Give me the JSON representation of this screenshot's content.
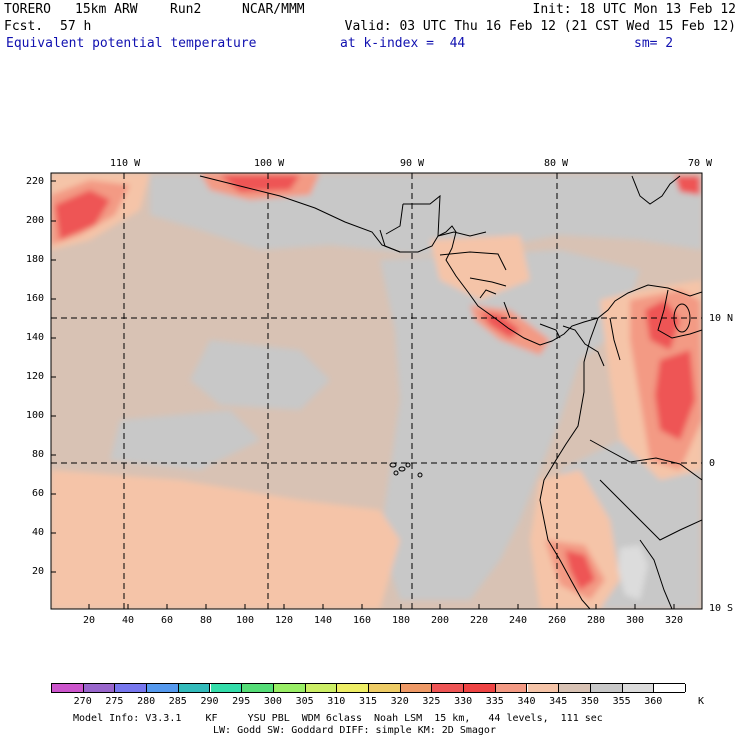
{
  "header": {
    "model": "TORERO",
    "resolution": "15km ARW",
    "run": "Run2",
    "org": "NCAR/MMM",
    "init": "Init: 18 UTC Mon 13 Feb 12",
    "fcst_label": "Fcst.",
    "fcst_hours": "57 h",
    "valid": "Valid: 03 UTC Thu 16 Feb 12 (21 CST Wed 15 Feb 12)",
    "field": "Equivalent potential temperature",
    "level": "at k-index =  44",
    "smoothing": "sm= 2"
  },
  "map": {
    "top_lon_labels": [
      "110 W",
      "100 W",
      "90 W",
      "80 W",
      "70 W"
    ],
    "right_lat_labels": [
      "10 N",
      "0",
      "10 S"
    ],
    "left_ticks": [
      "220",
      "200",
      "180",
      "160",
      "140",
      "120",
      "100",
      "80",
      "60",
      "40",
      "20"
    ],
    "bottom_ticks": [
      "20",
      "40",
      "60",
      "80",
      "100",
      "120",
      "140",
      "160",
      "180",
      "200",
      "220",
      "240",
      "260",
      "280",
      "300",
      "320"
    ]
  },
  "colorbar": {
    "unit": "K",
    "labels": [
      "270",
      "275",
      "280",
      "285",
      "290",
      "295",
      "300",
      "305",
      "310",
      "315",
      "320",
      "325",
      "330",
      "335",
      "340",
      "345",
      "350",
      "355",
      "360"
    ],
    "colors": [
      "#cc55cc",
      "#9966cc",
      "#7777ee",
      "#5599ee",
      "#33bbbb",
      "#33ddaa",
      "#55dd77",
      "#99ee66",
      "#ccee66",
      "#eeee66",
      "#eecc66",
      "#ee9966",
      "#ee5555",
      "#ee4444",
      "#f39a84",
      "#f5c4a8",
      "#d8c2b4",
      "#c8c8c8",
      "#dcdcdc",
      "#ffffff"
    ]
  },
  "footer": {
    "line1": "Model Info: V3.3.1    KF     YSU PBL  WDM 6class  Noah LSM  15 km,   44 levels,  111 sec",
    "line2": "LW: Godd SW: Goddard DIFF: simple KM: 2D Smagor"
  }
}
